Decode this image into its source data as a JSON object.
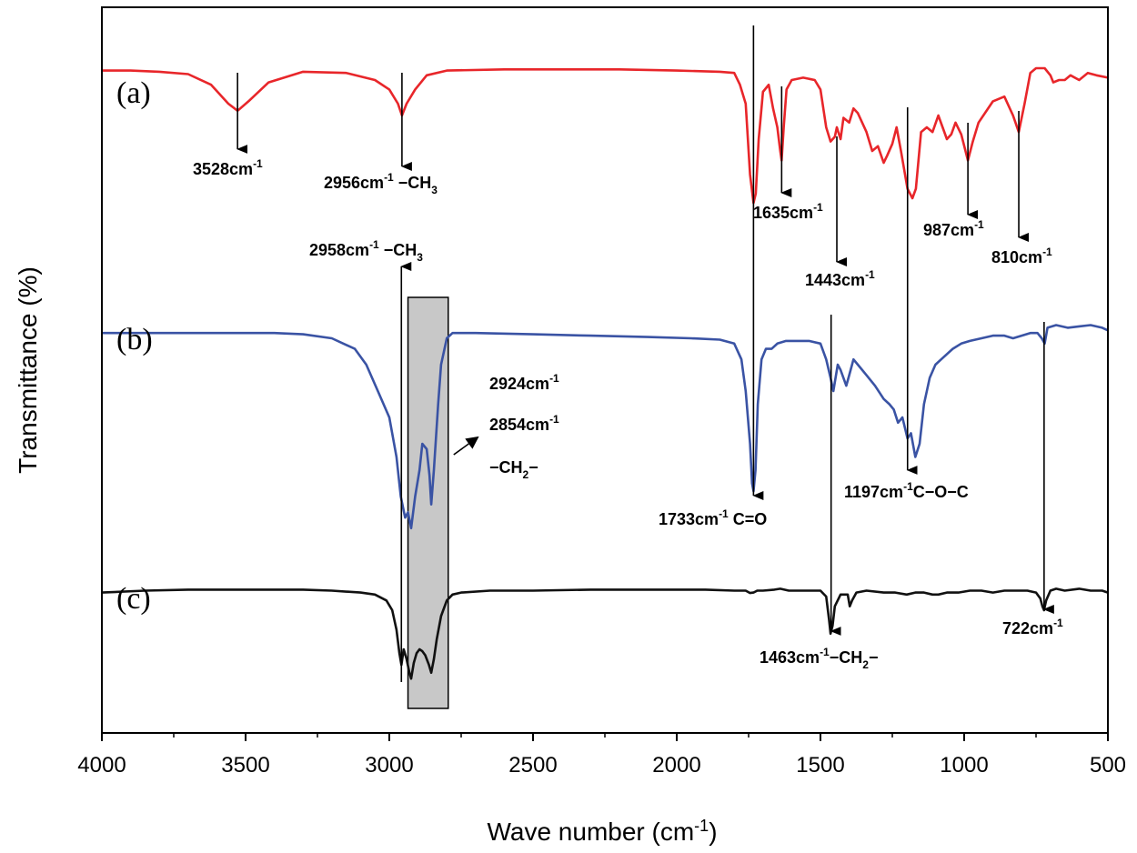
{
  "chart_data": {
    "type": "line",
    "title": "",
    "xlabel": "Wave number (cm",
    "xlabel_sup": "-1",
    "xlabel_close": ")",
    "ylabel": "Transmittance (%)",
    "xlim": [
      4000,
      500
    ],
    "x_ticks": [
      4000,
      3500,
      3000,
      2500,
      2000,
      1500,
      1000,
      500
    ],
    "colors": {
      "a": "#e8262a",
      "b": "#3a53a4",
      "c": "#111111",
      "box": "#c8c8c8"
    },
    "series": [
      {
        "name": "a",
        "label": "(a)",
        "points": [
          [
            4000,
            0.74
          ],
          [
            3900,
            0.74
          ],
          [
            3800,
            0.735
          ],
          [
            3700,
            0.725
          ],
          [
            3620,
            0.68
          ],
          [
            3560,
            0.6
          ],
          [
            3528,
            0.57
          ],
          [
            3490,
            0.61
          ],
          [
            3420,
            0.69
          ],
          [
            3300,
            0.735
          ],
          [
            3150,
            0.73
          ],
          [
            3050,
            0.7
          ],
          [
            3000,
            0.66
          ],
          [
            2970,
            0.6
          ],
          [
            2956,
            0.55
          ],
          [
            2940,
            0.6
          ],
          [
            2910,
            0.66
          ],
          [
            2870,
            0.72
          ],
          [
            2800,
            0.74
          ],
          [
            2600,
            0.745
          ],
          [
            2400,
            0.745
          ],
          [
            2200,
            0.745
          ],
          [
            2000,
            0.74
          ],
          [
            1850,
            0.735
          ],
          [
            1800,
            0.73
          ],
          [
            1780,
            0.68
          ],
          [
            1760,
            0.6
          ],
          [
            1745,
            0.3
          ],
          [
            1733,
            0.18
          ],
          [
            1725,
            0.22
          ],
          [
            1715,
            0.45
          ],
          [
            1700,
            0.65
          ],
          [
            1680,
            0.68
          ],
          [
            1665,
            0.58
          ],
          [
            1650,
            0.5
          ],
          [
            1640,
            0.4
          ],
          [
            1635,
            0.36
          ],
          [
            1628,
            0.5
          ],
          [
            1618,
            0.66
          ],
          [
            1600,
            0.7
          ],
          [
            1560,
            0.71
          ],
          [
            1520,
            0.7
          ],
          [
            1500,
            0.66
          ],
          [
            1480,
            0.5
          ],
          [
            1465,
            0.44
          ],
          [
            1450,
            0.46
          ],
          [
            1443,
            0.5
          ],
          [
            1430,
            0.45
          ],
          [
            1420,
            0.54
          ],
          [
            1400,
            0.52
          ],
          [
            1385,
            0.58
          ],
          [
            1370,
            0.56
          ],
          [
            1340,
            0.48
          ],
          [
            1320,
            0.4
          ],
          [
            1300,
            0.42
          ],
          [
            1280,
            0.35
          ],
          [
            1268,
            0.38
          ],
          [
            1250,
            0.43
          ],
          [
            1235,
            0.5
          ],
          [
            1220,
            0.4
          ],
          [
            1197,
            0.24
          ],
          [
            1180,
            0.2
          ],
          [
            1168,
            0.24
          ],
          [
            1150,
            0.48
          ],
          [
            1130,
            0.5
          ],
          [
            1110,
            0.48
          ],
          [
            1090,
            0.55
          ],
          [
            1075,
            0.5
          ],
          [
            1060,
            0.45
          ],
          [
            1045,
            0.47
          ],
          [
            1030,
            0.52
          ],
          [
            1010,
            0.47
          ],
          [
            987,
            0.36
          ],
          [
            970,
            0.44
          ],
          [
            950,
            0.52
          ],
          [
            900,
            0.61
          ],
          [
            860,
            0.63
          ],
          [
            830,
            0.55
          ],
          [
            810,
            0.48
          ],
          [
            790,
            0.6
          ],
          [
            770,
            0.73
          ],
          [
            750,
            0.75
          ],
          [
            720,
            0.75
          ],
          [
            700,
            0.72
          ],
          [
            690,
            0.69
          ],
          [
            670,
            0.7
          ],
          [
            650,
            0.7
          ],
          [
            630,
            0.72
          ],
          [
            600,
            0.7
          ],
          [
            570,
            0.73
          ],
          [
            540,
            0.72
          ],
          [
            500,
            0.71
          ]
        ]
      },
      {
        "name": "b",
        "label": "(b)",
        "points": [
          [
            4000,
            0.72
          ],
          [
            3800,
            0.72
          ],
          [
            3600,
            0.72
          ],
          [
            3400,
            0.72
          ],
          [
            3300,
            0.715
          ],
          [
            3200,
            0.7
          ],
          [
            3120,
            0.66
          ],
          [
            3080,
            0.6
          ],
          [
            3040,
            0.5
          ],
          [
            3000,
            0.4
          ],
          [
            2975,
            0.25
          ],
          [
            2960,
            0.1
          ],
          [
            2945,
            0.02
          ],
          [
            2935,
            0.04
          ],
          [
            2924,
            -0.02
          ],
          [
            2910,
            0.1
          ],
          [
            2895,
            0.2
          ],
          [
            2885,
            0.3
          ],
          [
            2870,
            0.28
          ],
          [
            2860,
            0.18
          ],
          [
            2854,
            0.07
          ],
          [
            2845,
            0.2
          ],
          [
            2830,
            0.45
          ],
          [
            2820,
            0.6
          ],
          [
            2800,
            0.7
          ],
          [
            2780,
            0.72
          ],
          [
            2700,
            0.72
          ],
          [
            2500,
            0.715
          ],
          [
            2300,
            0.71
          ],
          [
            2100,
            0.705
          ],
          [
            1950,
            0.7
          ],
          [
            1850,
            0.695
          ],
          [
            1800,
            0.68
          ],
          [
            1775,
            0.62
          ],
          [
            1760,
            0.5
          ],
          [
            1745,
            0.3
          ],
          [
            1738,
            0.15
          ],
          [
            1733,
            0.12
          ],
          [
            1726,
            0.2
          ],
          [
            1718,
            0.45
          ],
          [
            1705,
            0.62
          ],
          [
            1690,
            0.66
          ],
          [
            1670,
            0.66
          ],
          [
            1650,
            0.68
          ],
          [
            1620,
            0.69
          ],
          [
            1580,
            0.69
          ],
          [
            1540,
            0.69
          ],
          [
            1500,
            0.68
          ],
          [
            1480,
            0.62
          ],
          [
            1465,
            0.55
          ],
          [
            1455,
            0.5
          ],
          [
            1440,
            0.6
          ],
          [
            1430,
            0.58
          ],
          [
            1410,
            0.52
          ],
          [
            1400,
            0.56
          ],
          [
            1385,
            0.62
          ],
          [
            1370,
            0.6
          ],
          [
            1340,
            0.56
          ],
          [
            1310,
            0.52
          ],
          [
            1280,
            0.47
          ],
          [
            1260,
            0.45
          ],
          [
            1245,
            0.43
          ],
          [
            1230,
            0.38
          ],
          [
            1215,
            0.4
          ],
          [
            1197,
            0.32
          ],
          [
            1185,
            0.34
          ],
          [
            1170,
            0.25
          ],
          [
            1155,
            0.3
          ],
          [
            1140,
            0.45
          ],
          [
            1120,
            0.55
          ],
          [
            1100,
            0.6
          ],
          [
            1080,
            0.62
          ],
          [
            1060,
            0.64
          ],
          [
            1040,
            0.66
          ],
          [
            1010,
            0.68
          ],
          [
            980,
            0.69
          ],
          [
            940,
            0.7
          ],
          [
            900,
            0.71
          ],
          [
            860,
            0.71
          ],
          [
            830,
            0.7
          ],
          [
            800,
            0.71
          ],
          [
            770,
            0.72
          ],
          [
            745,
            0.72
          ],
          [
            730,
            0.7
          ],
          [
            720,
            0.68
          ],
          [
            710,
            0.74
          ],
          [
            680,
            0.75
          ],
          [
            640,
            0.74
          ],
          [
            600,
            0.745
          ],
          [
            560,
            0.75
          ],
          [
            520,
            0.74
          ],
          [
            500,
            0.73
          ]
        ]
      },
      {
        "name": "c",
        "label": "(c)",
        "points": [
          [
            4000,
            0.69
          ],
          [
            3850,
            0.7
          ],
          [
            3700,
            0.705
          ],
          [
            3500,
            0.705
          ],
          [
            3300,
            0.705
          ],
          [
            3200,
            0.7
          ],
          [
            3100,
            0.69
          ],
          [
            3050,
            0.68
          ],
          [
            3010,
            0.65
          ],
          [
            2990,
            0.6
          ],
          [
            2975,
            0.5
          ],
          [
            2965,
            0.38
          ],
          [
            2958,
            0.32
          ],
          [
            2950,
            0.4
          ],
          [
            2940,
            0.35
          ],
          [
            2930,
            0.28
          ],
          [
            2924,
            0.25
          ],
          [
            2915,
            0.33
          ],
          [
            2905,
            0.38
          ],
          [
            2895,
            0.4
          ],
          [
            2885,
            0.39
          ],
          [
            2875,
            0.37
          ],
          [
            2862,
            0.32
          ],
          [
            2854,
            0.28
          ],
          [
            2845,
            0.35
          ],
          [
            2835,
            0.45
          ],
          [
            2820,
            0.57
          ],
          [
            2800,
            0.65
          ],
          [
            2780,
            0.68
          ],
          [
            2750,
            0.69
          ],
          [
            2650,
            0.7
          ],
          [
            2500,
            0.7
          ],
          [
            2300,
            0.705
          ],
          [
            2100,
            0.705
          ],
          [
            1900,
            0.705
          ],
          [
            1800,
            0.7
          ],
          [
            1760,
            0.7
          ],
          [
            1745,
            0.688
          ],
          [
            1733,
            0.69
          ],
          [
            1720,
            0.7
          ],
          [
            1700,
            0.7
          ],
          [
            1660,
            0.705
          ],
          [
            1640,
            0.71
          ],
          [
            1610,
            0.7
          ],
          [
            1560,
            0.7
          ],
          [
            1500,
            0.7
          ],
          [
            1480,
            0.67
          ],
          [
            1470,
            0.55
          ],
          [
            1465,
            0.48
          ],
          [
            1458,
            0.52
          ],
          [
            1450,
            0.62
          ],
          [
            1430,
            0.68
          ],
          [
            1405,
            0.68
          ],
          [
            1398,
            0.62
          ],
          [
            1390,
            0.65
          ],
          [
            1375,
            0.69
          ],
          [
            1340,
            0.7
          ],
          [
            1280,
            0.69
          ],
          [
            1240,
            0.69
          ],
          [
            1200,
            0.68
          ],
          [
            1170,
            0.69
          ],
          [
            1140,
            0.69
          ],
          [
            1110,
            0.68
          ],
          [
            1090,
            0.68
          ],
          [
            1060,
            0.69
          ],
          [
            1020,
            0.69
          ],
          [
            980,
            0.7
          ],
          [
            940,
            0.7
          ],
          [
            900,
            0.69
          ],
          [
            860,
            0.7
          ],
          [
            820,
            0.7
          ],
          [
            780,
            0.7
          ],
          [
            750,
            0.69
          ],
          [
            735,
            0.66
          ],
          [
            728,
            0.62
          ],
          [
            722,
            0.6
          ],
          [
            715,
            0.65
          ],
          [
            700,
            0.7
          ],
          [
            680,
            0.71
          ],
          [
            650,
            0.7
          ],
          [
            600,
            0.71
          ],
          [
            560,
            0.7
          ],
          [
            520,
            0.7
          ],
          [
            500,
            0.69
          ]
        ]
      }
    ],
    "highlight_region": {
      "x_from": 2935,
      "x_to": 2795
    },
    "annotations": [
      {
        "text": "3528cm",
        "sup": "-1",
        "extra": ""
      },
      {
        "text": "2956cm",
        "sup": "-1",
        "extra": " −CH",
        "sub": "3"
      },
      {
        "text": "1635cm",
        "sup": "-1",
        "extra": ""
      },
      {
        "text": "987cm",
        "sup": "-1",
        "extra": ""
      },
      {
        "text": "810cm",
        "sup": "-1",
        "extra": ""
      },
      {
        "text": "1443cm",
        "sup": "-1",
        "extra": ""
      },
      {
        "text": "2958cm",
        "sup": "-1",
        "extra": " −CH",
        "sub": "3"
      },
      {
        "text": "2924cm",
        "sup": "-1",
        "extra": ""
      },
      {
        "text": "2854cm",
        "sup": "-1",
        "extra": ""
      },
      {
        "text": "−CH",
        "sup": "",
        "extra": "−",
        "sub": "2"
      },
      {
        "text": "1733cm",
        "sup": "-1",
        "extra": " C=O"
      },
      {
        "text": "1197cm",
        "sup": "-1",
        "extra": "C−O−C"
      },
      {
        "text": "1463cm",
        "sup": "-1",
        "extra": "−CH",
        "sub": "2",
        "tail": "−"
      },
      {
        "text": "722cm",
        "sup": "-1",
        "extra": ""
      }
    ]
  }
}
